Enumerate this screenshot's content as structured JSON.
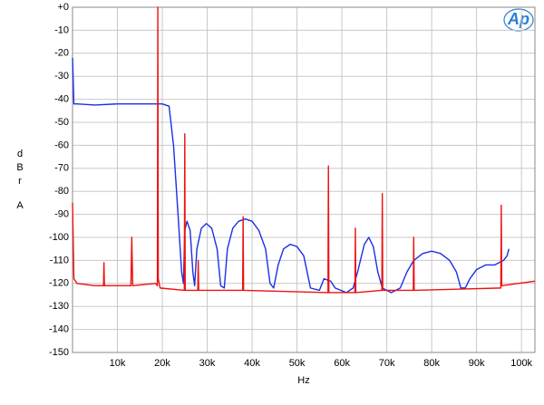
{
  "chart_data": {
    "type": "line",
    "ylabel_lines": [
      "d",
      "B",
      "r",
      "A"
    ],
    "xlabel": "Hz",
    "logo": "Ap",
    "xlim": [
      0,
      103000
    ],
    "ylim": [
      -150,
      0
    ],
    "xticks": [
      {
        "value": 10000,
        "label": "10k"
      },
      {
        "value": 20000,
        "label": "20k"
      },
      {
        "value": 30000,
        "label": "30k"
      },
      {
        "value": 40000,
        "label": "40k"
      },
      {
        "value": 50000,
        "label": "50k"
      },
      {
        "value": 60000,
        "label": "60k"
      },
      {
        "value": 70000,
        "label": "70k"
      },
      {
        "value": 80000,
        "label": "80k"
      },
      {
        "value": 90000,
        "label": "90k"
      },
      {
        "value": 100000,
        "label": "100k"
      }
    ],
    "yticks": [
      {
        "value": 0,
        "label": "+0"
      },
      -10,
      -20,
      -30,
      -40,
      -50,
      -60,
      -70,
      -80,
      -90,
      -100,
      -110,
      -120,
      -130,
      -140,
      -150
    ],
    "grid": true,
    "series": [
      {
        "color": "#1a2fe6",
        "x": [
          0,
          300,
          1000,
          5000,
          10000,
          15000,
          20000,
          21500,
          22500,
          23500,
          24300,
          24700,
          25000,
          25500,
          26200,
          26800,
          27200,
          27700,
          28700,
          29800,
          31000,
          32200,
          33000,
          33800,
          34500,
          35700,
          37000,
          38500,
          40000,
          41500,
          43000,
          44000,
          44800,
          45800,
          47000,
          48500,
          50000,
          51500,
          53000,
          55000,
          56000,
          57500,
          58500,
          61000,
          62500,
          63500,
          65000,
          66000,
          67000,
          68000,
          69000,
          71000,
          73000,
          74500,
          76000,
          78000,
          80000,
          82000,
          84000,
          85500,
          86500,
          87500,
          88500,
          90000,
          92000,
          94000,
          96000,
          96800,
          97200
        ],
        "values": [
          -22,
          -42,
          -42,
          -42.5,
          -42,
          -42,
          -42,
          -43,
          -60,
          -90,
          -115,
          -120,
          -97,
          -93,
          -97,
          -115,
          -121,
          -105,
          -96,
          -94,
          -96,
          -105,
          -121,
          -122,
          -105,
          -96,
          -93,
          -92,
          -93,
          -97,
          -105,
          -120,
          -122,
          -112,
          -105,
          -103,
          -104,
          -108,
          -122,
          -123,
          -118,
          -119,
          -122,
          -124,
          -122,
          -115,
          -103,
          -100,
          -104,
          -115,
          -122,
          -124,
          -122,
          -115,
          -110,
          -107,
          -106,
          -107,
          -110,
          -115,
          -122,
          -122,
          -118,
          -114,
          -112,
          -112,
          -110,
          -108,
          -105
        ]
      },
      {
        "color": "#ee1111",
        "x": [
          0,
          300,
          1000,
          5000,
          6900,
          7000,
          7100,
          13000,
          13200,
          13400,
          18500,
          18900,
          19000,
          19100,
          19500,
          24900,
          25000,
          25100,
          27900,
          28000,
          28100,
          37900,
          38000,
          38100,
          56900,
          57000,
          57100,
          62900,
          63000,
          63100,
          68900,
          69000,
          69100,
          75900,
          76000,
          76100,
          95400,
          95500,
          95600,
          103000
        ],
        "values": [
          -85,
          -118,
          -120,
          -121,
          -121,
          -111,
          -121,
          -121,
          -100,
          -121,
          -120,
          -121,
          0,
          -118,
          -122,
          -123,
          -55,
          -123,
          -123,
          -110,
          -123,
          -123,
          -91,
          -123,
          -124,
          -69,
          -124,
          -124,
          -96,
          -124,
          -123,
          -81,
          -123,
          -123,
          -100,
          -123,
          -122,
          -86,
          -121,
          -119
        ]
      }
    ]
  }
}
